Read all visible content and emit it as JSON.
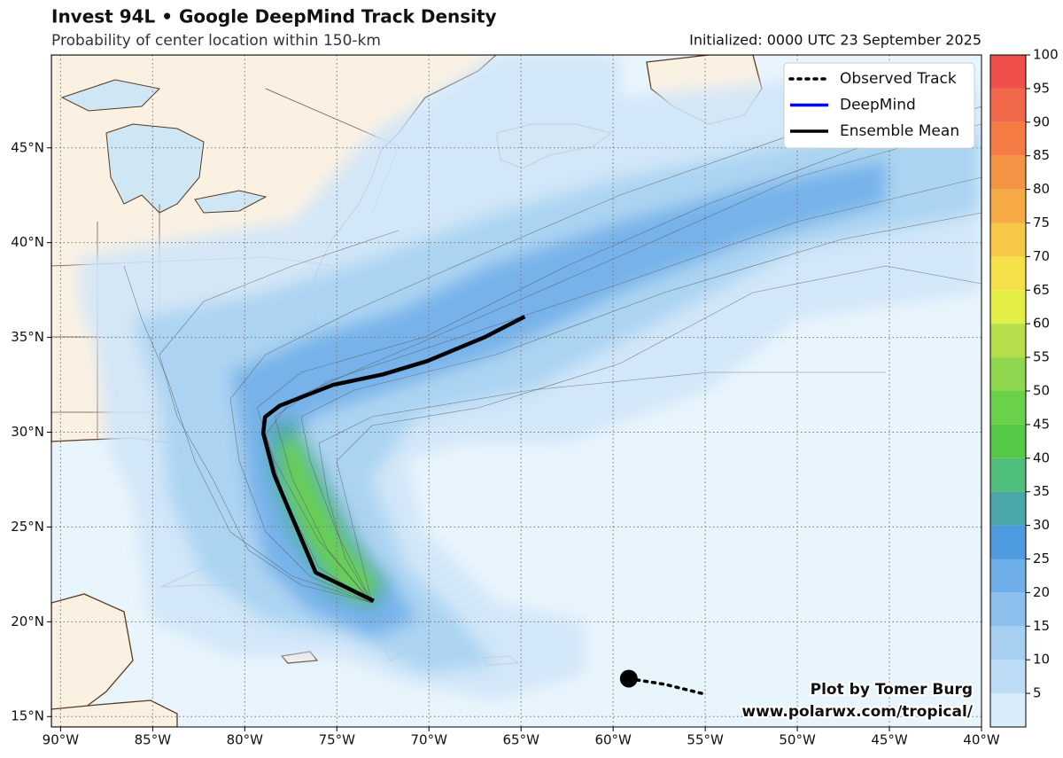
{
  "title": "Invest 94L • Google DeepMind Track Density",
  "subtitle": "Probability of center location within 150-km",
  "initialized": "Initialized: 0000 UTC 23 September 2025",
  "legend": [
    {
      "name": "Observed Track",
      "color": "#000000",
      "style": "dotted"
    },
    {
      "name": "DeepMind",
      "color": "#0000ff",
      "style": "solid"
    },
    {
      "name": "Ensemble Mean",
      "color": "#000000",
      "style": "solid"
    }
  ],
  "credit": [
    "Plot by Tomer Burg",
    "www.polarwx.com/tropical/"
  ],
  "map": {
    "xlim": [
      -90.5,
      -40
    ],
    "ylim": [
      14.45,
      49.9
    ],
    "grid": true,
    "xticks": [
      {
        "value": -90,
        "label": "90°W"
      },
      {
        "value": -85,
        "label": "85°W"
      },
      {
        "value": -80,
        "label": "80°W"
      },
      {
        "value": -75,
        "label": "75°W"
      },
      {
        "value": -70,
        "label": "70°W"
      },
      {
        "value": -65,
        "label": "65°W"
      },
      {
        "value": -60,
        "label": "60°W"
      },
      {
        "value": -55,
        "label": "55°W"
      },
      {
        "value": -50,
        "label": "50°W"
      },
      {
        "value": -45,
        "label": "45°W"
      },
      {
        "value": -40,
        "label": "40°W"
      }
    ],
    "yticks": [
      {
        "value": 15,
        "label": "15°N"
      },
      {
        "value": 20,
        "label": "20°N"
      },
      {
        "value": 25,
        "label": "25°N"
      },
      {
        "value": 30,
        "label": "30°N"
      },
      {
        "value": 35,
        "label": "35°N"
      },
      {
        "value": 40,
        "label": "40°N"
      },
      {
        "value": 45,
        "label": "45°N"
      }
    ]
  },
  "colorbar": {
    "lim": [
      0,
      100
    ],
    "ticks": [
      5,
      10,
      15,
      20,
      25,
      30,
      35,
      40,
      45,
      50,
      55,
      60,
      65,
      70,
      75,
      80,
      85,
      90,
      95,
      100
    ],
    "colors": [
      "#d8ecfa",
      "#bddcf5",
      "#a6cff2",
      "#8ec0ee",
      "#6eaee9",
      "#4f9be0",
      "#4aa6a8",
      "#4fbe7a",
      "#55c947",
      "#6ad14b",
      "#8fd64f",
      "#b5de4a",
      "#e3ef47",
      "#f5e04a",
      "#f7c848",
      "#f6ab47",
      "#f59445",
      "#f47c44",
      "#f2684a",
      "#ee4f4a"
    ]
  },
  "tracks": {
    "ensemble_mean": {
      "lon": [
        -73.0,
        -76.15,
        -77.6,
        -78.4,
        -79.0,
        -78.9,
        -78.1,
        -75.2,
        -72.5,
        -70.1,
        -67.0,
        -64.8
      ],
      "lat": [
        21.1,
        22.6,
        25.9,
        27.75,
        29.95,
        30.8,
        31.4,
        32.5,
        33.05,
        33.75,
        35.0,
        36.1
      ]
    },
    "observed": {
      "lon": [
        -59.15,
        -57.2,
        -55.1
      ],
      "lat": [
        17.0,
        16.7,
        16.2
      ]
    }
  }
}
